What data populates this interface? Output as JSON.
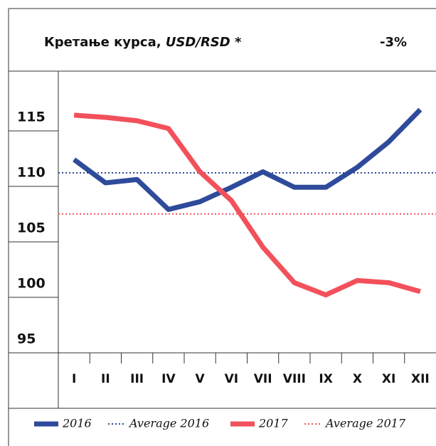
{
  "chart_data": {
    "type": "line",
    "title": "Кретање курса,",
    "title_emphasis": "USD/RSD",
    "title_mark": "*",
    "annotation": "-3%",
    "categories": [
      "I",
      "II",
      "III",
      "IV",
      "V",
      "VI",
      "VII",
      "VIII",
      "IX",
      "X",
      "XI",
      "XII"
    ],
    "series": [
      {
        "name": "2016",
        "color": "#2e4a9a",
        "values": [
          111.2,
          109.1,
          109.4,
          106.7,
          107.4,
          108.7,
          110.1,
          108.7,
          108.7,
          110.5,
          112.8,
          115.7
        ]
      },
      {
        "name": "2017",
        "color": "#f2515b",
        "values": [
          115.2,
          115.0,
          114.7,
          114.0,
          110.1,
          107.5,
          103.3,
          100.1,
          99.0,
          100.3,
          100.1,
          99.3
        ]
      }
    ],
    "reference_lines": [
      {
        "name": "Average 2016",
        "color": "#2e4a9a",
        "value": 110.0
      },
      {
        "name": "Average 2017",
        "color": "#f2515b",
        "value": 106.3
      }
    ],
    "ylim": [
      93.78,
      119.17
    ],
    "yticks": [
      95,
      100,
      105,
      110,
      115
    ]
  }
}
